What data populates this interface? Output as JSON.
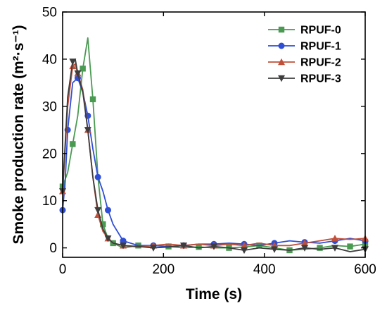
{
  "chart_data": {
    "type": "line",
    "title": "",
    "xlabel": "Time (s)",
    "ylabel": "Smoke production rate (m²·s⁻¹)",
    "xlim": [
      0,
      600
    ],
    "ylim": [
      -2,
      50
    ],
    "xticks": [
      0,
      200,
      400,
      600
    ],
    "yticks": [
      0,
      10,
      20,
      30,
      40,
      50
    ],
    "grid": false,
    "legend_position": "top-right",
    "series": [
      {
        "name": "RPUF-0",
        "color": "#4a9a52",
        "marker": "square",
        "x": [
          0,
          10,
          20,
          30,
          40,
          50,
          60,
          70,
          80,
          90,
          100,
          120,
          150,
          180,
          210,
          240,
          270,
          300,
          330,
          360,
          390,
          420,
          450,
          480,
          510,
          540,
          570,
          600
        ],
        "y": [
          13,
          16,
          22,
          28,
          38,
          44.5,
          31.5,
          15,
          5,
          2,
          1,
          0,
          0.5,
          0,
          0.3,
          0,
          0.2,
          0,
          0,
          0.2,
          0.5,
          0,
          -0.5,
          -0.3,
          0,
          0.5,
          0.3,
          0.8
        ]
      },
      {
        "name": "RPUF-1",
        "color": "#2f4ed6",
        "marker": "circle",
        "x": [
          0,
          5,
          10,
          20,
          30,
          40,
          50,
          60,
          70,
          80,
          90,
          100,
          120,
          150,
          180,
          210,
          240,
          270,
          300,
          330,
          360,
          390,
          420,
          450,
          480,
          510,
          540,
          570,
          600
        ],
        "y": [
          8,
          14,
          25,
          35,
          36,
          33,
          28,
          21,
          15,
          12,
          8,
          5,
          1.5,
          0.5,
          0.5,
          0.3,
          0.5,
          0.8,
          0.8,
          1,
          0.8,
          0.5,
          1,
          1.5,
          1.2,
          1,
          1.5,
          2,
          1.5
        ]
      },
      {
        "name": "RPUF-2",
        "color": "#c0503a",
        "marker": "triangle-up",
        "x": [
          0,
          10,
          20,
          25,
          30,
          40,
          50,
          60,
          70,
          80,
          90,
          100,
          120,
          150,
          180,
          210,
          240,
          270,
          300,
          330,
          360,
          390,
          420,
          450,
          480,
          510,
          540,
          570,
          600
        ],
        "y": [
          12,
          30,
          38.5,
          39,
          37,
          33.5,
          25,
          15,
          7,
          3.5,
          2,
          1,
          0.5,
          0.2,
          0.5,
          0.8,
          0.5,
          0.8,
          0.5,
          0.8,
          0.5,
          1,
          0.5,
          0.5,
          1,
          1.5,
          2,
          1.8,
          2
        ]
      },
      {
        "name": "RPUF-3",
        "color": "#3d3d3d",
        "marker": "triangle-down",
        "x": [
          0,
          10,
          20,
          25,
          30,
          40,
          50,
          60,
          70,
          80,
          90,
          100,
          120,
          150,
          180,
          210,
          240,
          270,
          300,
          330,
          360,
          390,
          420,
          450,
          480,
          510,
          540,
          570,
          600
        ],
        "y": [
          12,
          32,
          39.5,
          40,
          37,
          33,
          25,
          15,
          8,
          4,
          2,
          1,
          0.5,
          0.3,
          0,
          0.2,
          0.5,
          0,
          0.3,
          0,
          -0.5,
          0,
          -0.3,
          -0.5,
          0,
          -0.3,
          0,
          -0.8,
          -0.3
        ]
      }
    ]
  }
}
